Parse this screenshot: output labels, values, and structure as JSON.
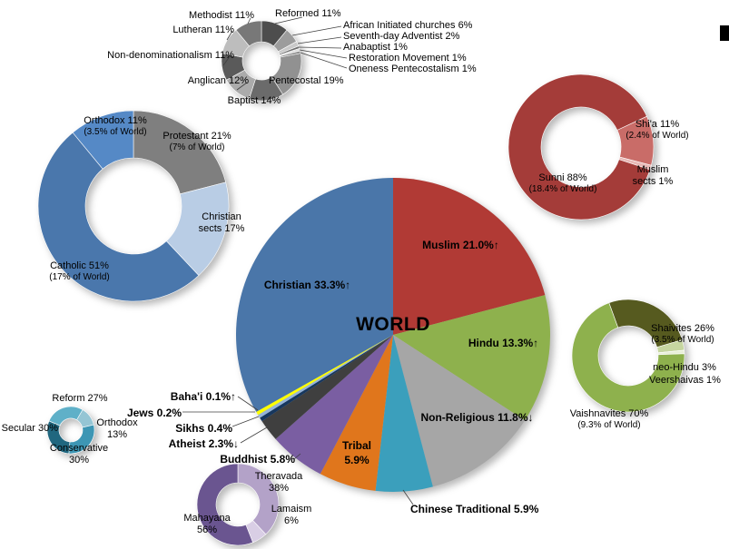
{
  "decorations": {
    "edge_marker_color": "#000000",
    "background": "#FFFFFF",
    "leader_line_color": "#404040"
  },
  "chart_data": [
    {
      "id": "world",
      "type": "pie",
      "title": "WORLD",
      "start_angle": 0,
      "slices": [
        {
          "label": "Muslim 21.0%↑",
          "value": 21.0,
          "color": "#B13A35"
        },
        {
          "label": "Hindu 13.3%↑",
          "value": 13.3,
          "color": "#8EB14D"
        },
        {
          "label": "Non-Religious 11.8%↓",
          "value": 11.8,
          "color": "#A6A6A6"
        },
        {
          "label": "Chinese Traditional 5.9%",
          "value": 5.9,
          "color": "#3B9FBC"
        },
        {
          "label": "Tribal 5.9%",
          "value": 5.9,
          "color": "#E0761C"
        },
        {
          "label": "Buddhist 5.8%",
          "value": 5.8,
          "color": "#7A5EA2"
        },
        {
          "label": "Atheist 2.3%↓",
          "value": 2.3,
          "color": "#3F3F3F"
        },
        {
          "label": "Sikhs 0.4%",
          "value": 0.4,
          "color": "#17375E"
        },
        {
          "label": "Jews 0.2%",
          "value": 0.2,
          "color": "#95B3D7"
        },
        {
          "label": "Baha'i 0.1%↑",
          "value": 0.1,
          "color": "#FFFF00"
        },
        {
          "label": "Christian 33.3%↑",
          "value": 33.3,
          "color": "#4A76A9"
        }
      ]
    },
    {
      "id": "christian",
      "type": "donut",
      "start_angle": 0,
      "slices": [
        {
          "label": "Protestant 21%",
          "sublabel": "(7% of World)",
          "value": 21,
          "color": "#7F7F7F"
        },
        {
          "label": "Christian sects 17%",
          "value": 17,
          "color": "#B9CDE5"
        },
        {
          "label": "Catholic 51%",
          "sublabel": "(17% of World)",
          "value": 51,
          "color": "#4A77AC"
        },
        {
          "label": "Orthodox 11%",
          "sublabel": "(3.5% of World)",
          "value": 11,
          "color": "#5589C6"
        }
      ]
    },
    {
      "id": "protestant",
      "type": "donut",
      "start_angle": 0,
      "slices": [
        {
          "label": "Reformed 11%",
          "value": 11,
          "color": "#4D4D4D"
        },
        {
          "label": "African Initiated churches 6%",
          "value": 6,
          "color": "#9C9C9C"
        },
        {
          "label": "Seventh-day Adventist 2%",
          "value": 2,
          "color": "#C9C9C9"
        },
        {
          "label": "Anabaptist 1%",
          "value": 1,
          "color": "#6F6F6F"
        },
        {
          "label": "Restoration Movement 1%",
          "value": 1,
          "color": "#DDDDDD"
        },
        {
          "label": "Oneness Pentecostalism 1%",
          "value": 1,
          "color": "#8A8A8A"
        },
        {
          "label": "Pentecostal 19%",
          "value": 19,
          "color": "#919191"
        },
        {
          "label": "Baptist 14%",
          "value": 14,
          "color": "#6B6B6B"
        },
        {
          "label": "Anglican 12%",
          "value": 12,
          "color": "#ABABAB"
        },
        {
          "label": "Non-denominationalism 11%",
          "value": 11,
          "color": "#5A5A5A"
        },
        {
          "label": "Lutheran 11%",
          "value": 11,
          "color": "#BDBDBD"
        },
        {
          "label": "Methodist 11%",
          "value": 11,
          "color": "#787878"
        }
      ]
    },
    {
      "id": "muslim",
      "type": "donut",
      "start_angle": 65,
      "slices": [
        {
          "label": "Shi'a 11%",
          "sublabel": "(2.4% of World)",
          "value": 11,
          "color": "#C96C68"
        },
        {
          "label": "Muslim sects 1%",
          "value": 1,
          "color": "#E8B9B7"
        },
        {
          "label": "Sunni 88%",
          "sublabel": "(18.4% of World)",
          "value": 88,
          "color": "#A43C39"
        }
      ]
    },
    {
      "id": "hindu",
      "type": "donut",
      "start_angle": 340,
      "slices": [
        {
          "label": "Shaivites 26%",
          "sublabel": "(3.5% of World)",
          "value": 26,
          "color": "#565A1F"
        },
        {
          "label": "neo-Hindu 3%",
          "value": 3,
          "color": "#C6D6A0"
        },
        {
          "label": "Veershaivas 1%",
          "value": 1,
          "color": "#E8EFD8"
        },
        {
          "label": "Vaishnavites 70%",
          "sublabel": "(9.3% of World)",
          "value": 70,
          "color": "#8EB14D"
        }
      ]
    },
    {
      "id": "jewish",
      "type": "donut",
      "start_angle": 30,
      "slices": [
        {
          "label": "Orthodox 13%",
          "value": 13,
          "color": "#95C5D4"
        },
        {
          "label": "Conservative 30%",
          "value": 30,
          "color": "#3D96B4"
        },
        {
          "label": "Secular 30%",
          "value": 30,
          "color": "#20677F"
        },
        {
          "label": "Reform 27%",
          "value": 27,
          "color": "#5FB0C8"
        }
      ]
    },
    {
      "id": "buddhist",
      "type": "donut",
      "start_angle": 0,
      "slices": [
        {
          "label": "Theravada 38%",
          "value": 38,
          "color": "#B3A2C8"
        },
        {
          "label": "Lamaism 6%",
          "value": 6,
          "color": "#D9CEE5"
        },
        {
          "label": "Mahayana 56%",
          "value": 56,
          "color": "#6A5590"
        }
      ]
    }
  ]
}
